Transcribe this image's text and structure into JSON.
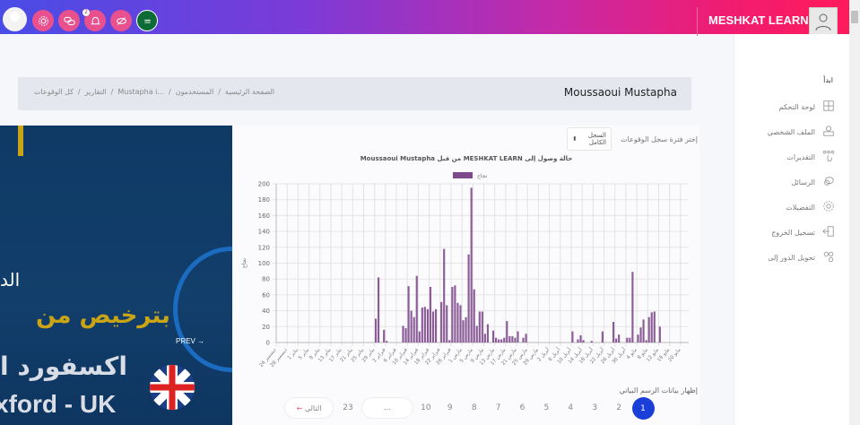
{
  "header": {
    "brand": "MESHKAT LEARN",
    "notification_count": "2",
    "icons": [
      "settings-icon",
      "chat-icon",
      "bell-icon",
      "eye-off-icon",
      "saudi-flag-icon"
    ],
    "accent": "#e8508e"
  },
  "sidebar": {
    "heading": "ابدأ",
    "items": [
      {
        "label": "لوحة التحكم",
        "icon": "puzzle-icon"
      },
      {
        "label": "الملف الشخصي",
        "icon": "profile-icon"
      },
      {
        "label": "التقديرات",
        "icon": "hand-dots-icon"
      },
      {
        "label": "الرسائل",
        "icon": "messages-icon"
      },
      {
        "label": "التفضيلات",
        "icon": "gear-icon"
      },
      {
        "label": "تسجيل الخروج",
        "icon": "logout-icon"
      },
      {
        "label": "تحويل الدور إلى",
        "icon": "switch-role-icon"
      }
    ]
  },
  "breadcrumb": {
    "title": "Moussaoui Mustapha",
    "items": [
      "الصفحة الرئيسية",
      "/",
      "المستخدمون",
      "/",
      "Mustapha i...",
      "/",
      "التقارير",
      "/",
      "كل الوقوعات"
    ]
  },
  "promo": {
    "text_ar_1": "الد",
    "text_ar_2": "بترخيص من",
    "text_ar_3": "اكسفورد ا",
    "text_en": "xford -  UK",
    "prev": "PREV"
  },
  "filter": {
    "label": "إختر فترة سجل الوقوعات",
    "selected": "السجل الكامل"
  },
  "chart_data": {
    "type": "bar",
    "title": "حالة وصول إلى MESHKAT LEARN من قبل Moussaoui Mustapha",
    "ylabel": "نجاح",
    "xlabel": "",
    "ylim": [
      0,
      200
    ],
    "yticks": [
      0,
      20,
      40,
      60,
      80,
      100,
      120,
      140,
      160,
      180,
      200
    ],
    "grid": true,
    "legend": "top-center",
    "series": [
      {
        "name": "نجاح",
        "color": "#7e4a8c"
      }
    ],
    "x_tick_labels": [
      "24 ديسمبر",
      "28 ديسمبر",
      "1 يناير",
      "5 يناير",
      "9 يناير",
      "13 يناير",
      "17 يناير",
      "21 يناير",
      "25 يناير",
      "29 يناير",
      "2 فبراير",
      "6 فبراير",
      "10 فبراير",
      "14 فبراير",
      "18 فبراير",
      "22 فبراير",
      "26 فبراير",
      "1 مارس",
      "5 مارس",
      "9 مارس",
      "13 مارس",
      "17 مارس",
      "21 مارس",
      "25 مارس",
      "29 مارس",
      "2 أبريل",
      "6 أبريل",
      "10 أبريل",
      "14 أبريل",
      "18 أبريل",
      "22 أبريل",
      "26 أبريل",
      "30 أبريل",
      "4 مايو",
      "8 مايو",
      "12 مايو",
      "16 مايو",
      "20 مايو"
    ],
    "values": [
      0,
      0,
      0,
      0,
      0,
      0,
      0,
      0,
      0,
      0,
      0,
      0,
      0,
      0,
      0,
      0,
      0,
      0,
      0,
      0,
      0,
      0,
      0,
      0,
      0,
      0,
      0,
      0,
      0,
      0,
      0,
      0,
      0,
      0,
      0,
      0,
      30,
      82,
      0,
      16,
      2,
      0,
      0,
      0,
      0,
      0,
      21,
      18,
      71,
      40,
      32,
      84,
      14,
      44,
      45,
      42,
      70,
      39,
      42,
      0,
      51,
      118,
      47,
      3,
      70,
      72,
      50,
      47,
      28,
      32,
      111,
      195,
      67,
      21,
      39,
      39,
      11,
      23,
      0,
      15,
      6,
      4,
      4,
      6,
      27,
      8,
      8,
      6,
      14,
      0,
      6,
      11,
      0,
      0,
      0,
      0,
      0,
      0,
      0,
      0,
      0,
      0,
      0,
      0,
      0,
      0,
      0,
      0,
      14,
      0,
      4,
      9,
      3,
      0,
      0,
      2,
      0,
      0,
      0,
      14,
      0,
      0,
      0,
      26,
      5,
      10,
      0,
      0,
      6,
      6,
      89,
      0,
      10,
      19,
      29,
      3,
      32,
      38,
      39,
      0,
      20,
      0,
      0,
      0,
      0,
      0,
      0,
      0,
      0,
      0,
      0
    ]
  },
  "show_chart_data": "إظهار بيانات الرسم البياني",
  "pagination": {
    "pages": [
      "1",
      "2",
      "3",
      "4",
      "5",
      "6",
      "7",
      "8",
      "9",
      "10"
    ],
    "ellipsis": "...",
    "last": "23",
    "next": "التالي",
    "next_arrow": "←",
    "active": "1"
  }
}
